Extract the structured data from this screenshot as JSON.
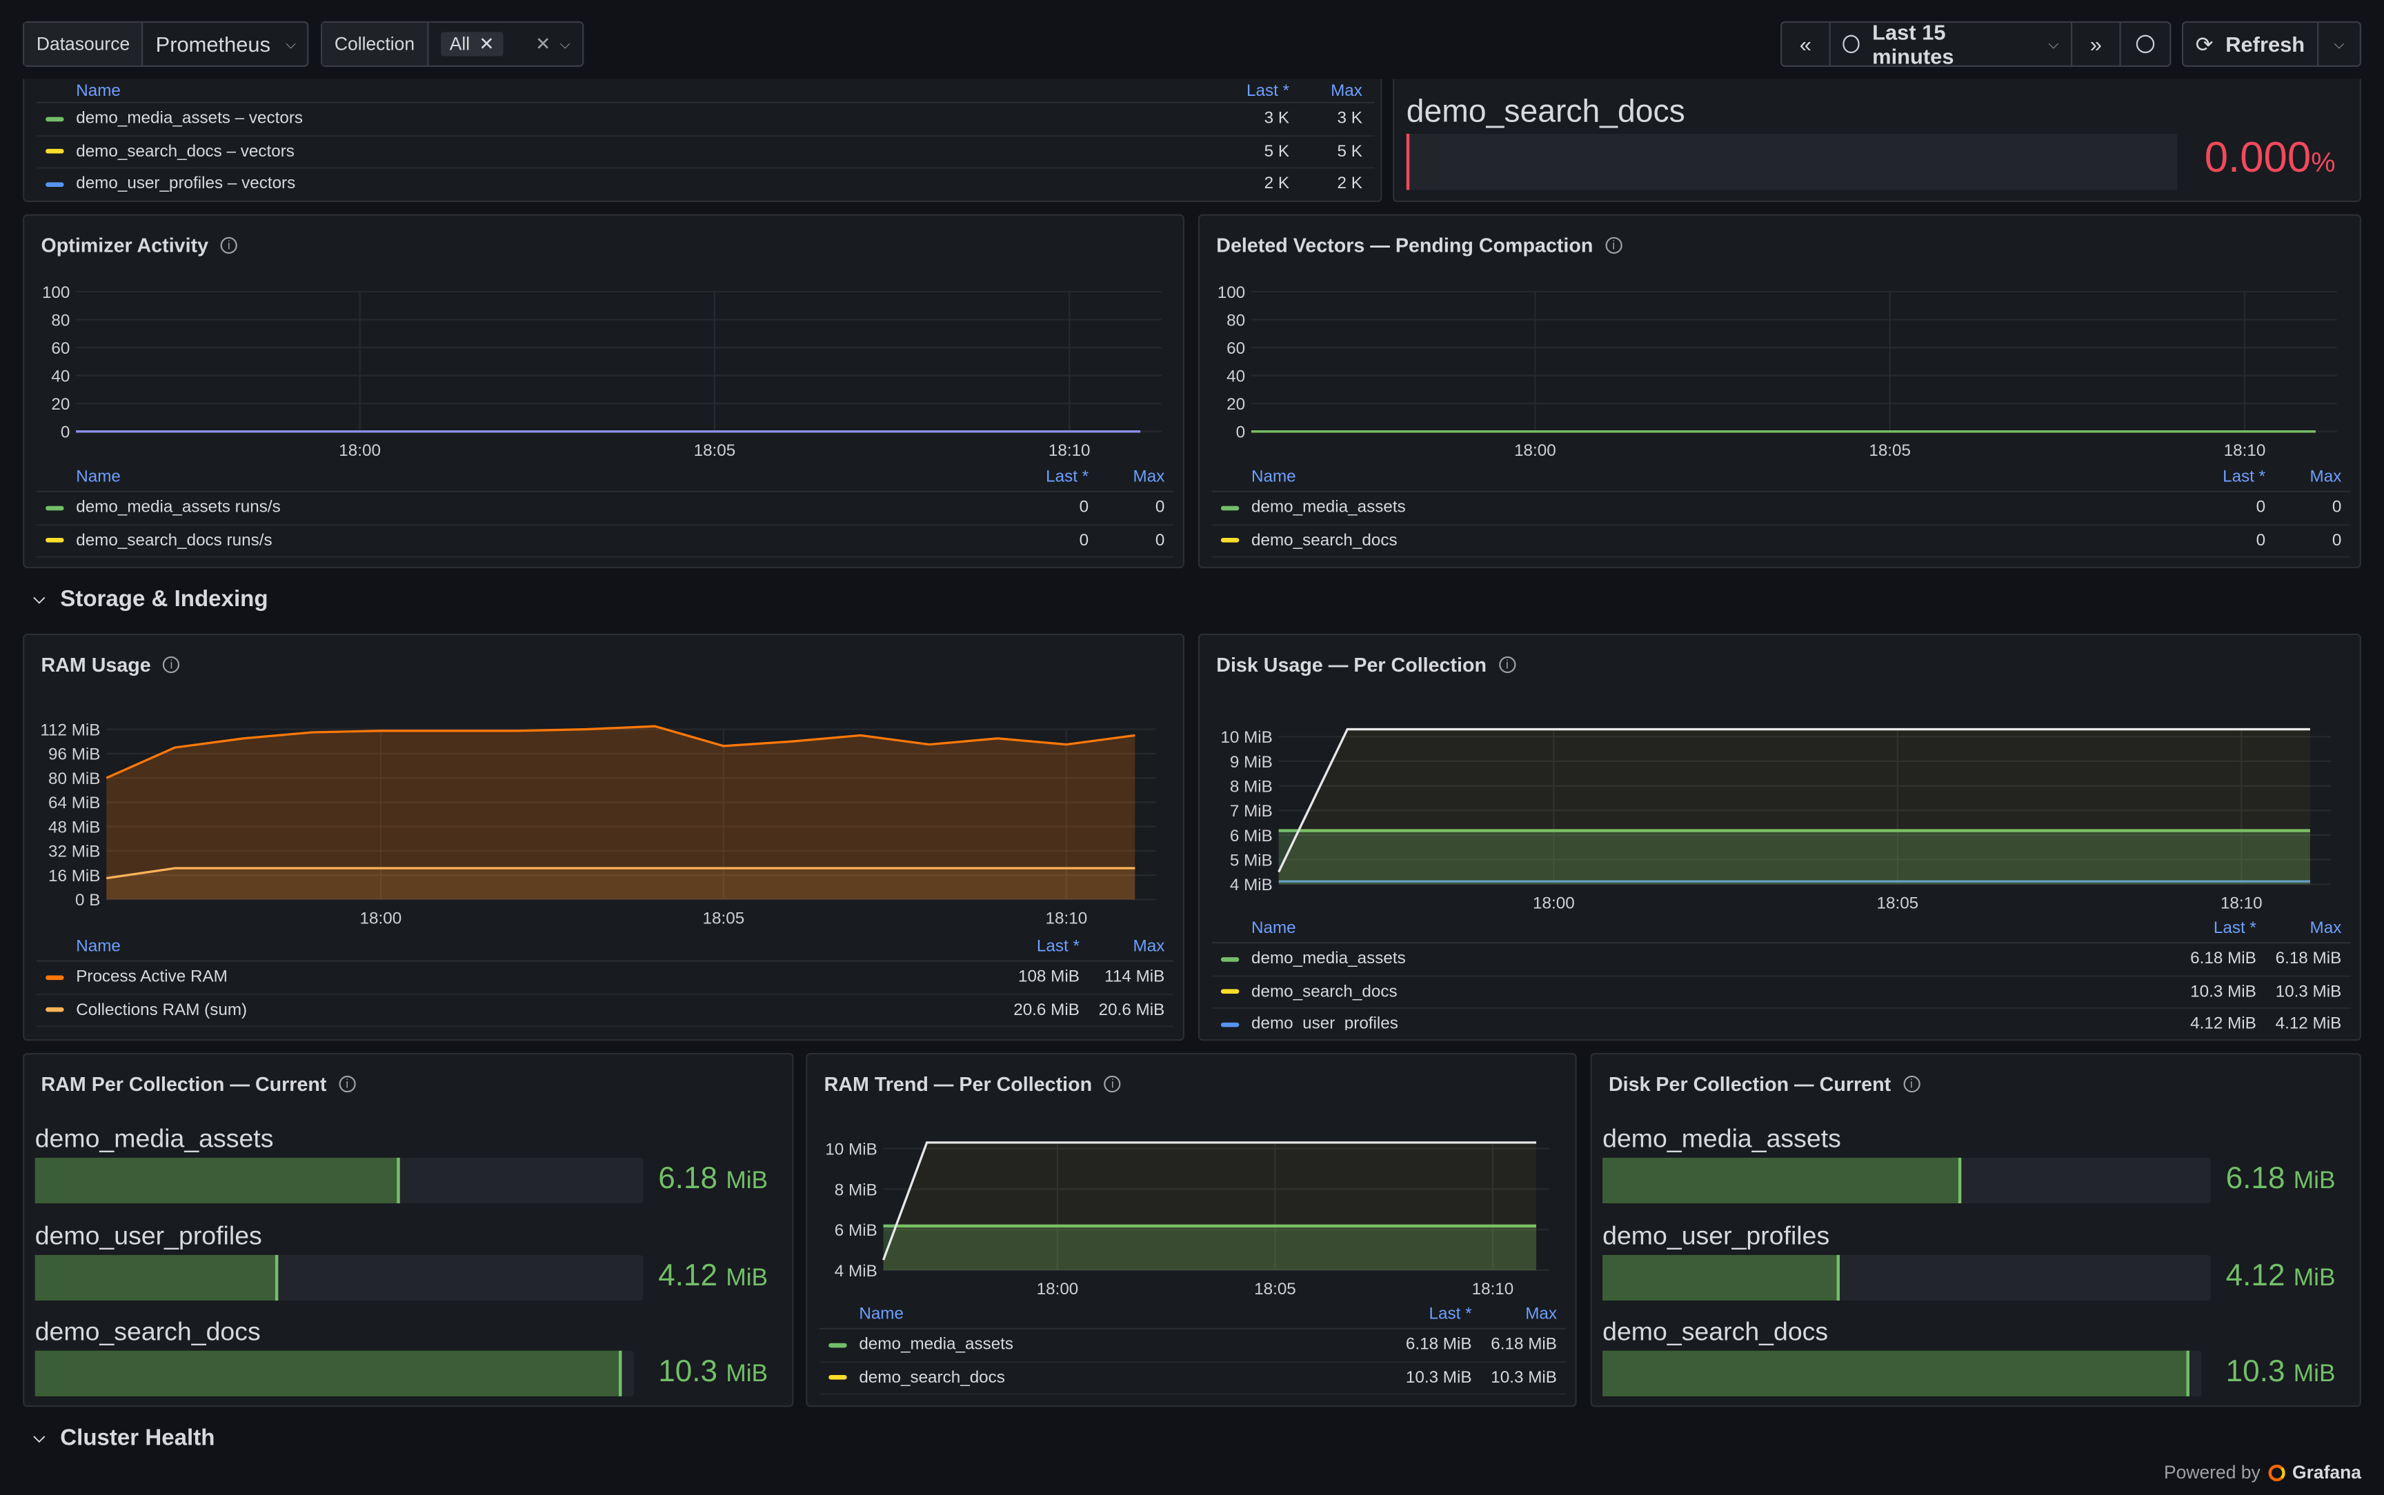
{
  "toolbar": {
    "datasource_label": "Datasource",
    "datasource_value": "Prometheus",
    "collection_label": "Collection",
    "collection_chip": "All",
    "time_range": "Last 15 minutes",
    "refresh_label": "Refresh"
  },
  "top_legend": {
    "headers": [
      "Name",
      "Last *",
      "Max"
    ],
    "rows": [
      {
        "name": "demo_media_assets – vectors",
        "last": "3 K",
        "max": "3 K",
        "color": "#73bf69"
      },
      {
        "name": "demo_search_docs – vectors",
        "last": "5 K",
        "max": "5 K",
        "color": "#fade2a"
      },
      {
        "name": "demo_user_profiles – vectors",
        "last": "2 K",
        "max": "2 K",
        "color": "#5794f2"
      }
    ]
  },
  "top_stat": {
    "name": "demo_search_docs",
    "value": "0.000",
    "unit": "%"
  },
  "optimizer": {
    "title": "Optimizer Activity",
    "yticks": [
      "100",
      "80",
      "60",
      "40",
      "20",
      "0"
    ],
    "xticks": [
      "18:00",
      "18:05",
      "18:10"
    ],
    "legend_headers": [
      "Name",
      "Last *",
      "Max"
    ],
    "legend": [
      {
        "name": "demo_media_assets runs/s",
        "last": "0",
        "max": "0",
        "color": "#73bf69"
      },
      {
        "name": "demo_search_docs runs/s",
        "last": "0",
        "max": "0",
        "color": "#fade2a"
      }
    ]
  },
  "deleted": {
    "title": "Deleted Vectors — Pending Compaction",
    "yticks": [
      "100",
      "80",
      "60",
      "40",
      "20",
      "0"
    ],
    "xticks": [
      "18:00",
      "18:05",
      "18:10"
    ],
    "legend_headers": [
      "Name",
      "Last *",
      "Max"
    ],
    "legend": [
      {
        "name": "demo_media_assets",
        "last": "0",
        "max": "0",
        "color": "#73bf69"
      },
      {
        "name": "demo_search_docs",
        "last": "0",
        "max": "0",
        "color": "#fade2a"
      }
    ]
  },
  "rows": {
    "storage": "Storage & Indexing",
    "cluster": "Cluster Health"
  },
  "ram_usage": {
    "title": "RAM Usage",
    "yticks": [
      "112 MiB",
      "96 MiB",
      "80 MiB",
      "64 MiB",
      "48 MiB",
      "32 MiB",
      "16 MiB",
      "0 B"
    ],
    "xticks": [
      "18:00",
      "18:05",
      "18:10"
    ],
    "legend_headers": [
      "Name",
      "Last *",
      "Max"
    ],
    "legend": [
      {
        "name": "Process Active RAM",
        "last": "108 MiB",
        "max": "114 MiB",
        "color": "#ff780a"
      },
      {
        "name": "Collections RAM (sum)",
        "last": "20.6 MiB",
        "max": "20.6 MiB",
        "color": "#ffb357"
      }
    ]
  },
  "disk_usage": {
    "title": "Disk Usage — Per Collection",
    "yticks": [
      "10 MiB",
      "9 MiB",
      "8 MiB",
      "7 MiB",
      "6 MiB",
      "5 MiB",
      "4 MiB"
    ],
    "xticks": [
      "18:00",
      "18:05",
      "18:10"
    ],
    "legend_headers": [
      "Name",
      "Last *",
      "Max"
    ],
    "legend": [
      {
        "name": "demo_media_assets",
        "last": "6.18 MiB",
        "max": "6.18 MiB",
        "color": "#73bf69"
      },
      {
        "name": "demo_search_docs",
        "last": "10.3 MiB",
        "max": "10.3 MiB",
        "color": "#fade2a"
      },
      {
        "name": "demo_user_profiles",
        "last": "4.12 MiB",
        "max": "4.12 MiB",
        "color": "#5794f2"
      }
    ]
  },
  "ram_per_collection": {
    "title": "RAM Per Collection — Current",
    "items": [
      {
        "name": "demo_media_assets",
        "value": "6.18",
        "unit": "MiB",
        "fraction": 0.6
      },
      {
        "name": "demo_user_profiles",
        "value": "4.12",
        "unit": "MiB",
        "fraction": 0.4
      },
      {
        "name": "demo_search_docs",
        "value": "10.3",
        "unit": "MiB",
        "fraction": 0.98
      }
    ]
  },
  "ram_trend": {
    "title": "RAM Trend — Per Collection",
    "yticks": [
      "10 MiB",
      "8 MiB",
      "6 MiB",
      "4 MiB"
    ],
    "xticks": [
      "18:00",
      "18:05",
      "18:10"
    ],
    "legend_headers": [
      "Name",
      "Last *",
      "Max"
    ],
    "legend": [
      {
        "name": "demo_media_assets",
        "last": "6.18 MiB",
        "max": "6.18 MiB",
        "color": "#73bf69"
      },
      {
        "name": "demo_search_docs",
        "last": "10.3 MiB",
        "max": "10.3 MiB",
        "color": "#fade2a"
      }
    ]
  },
  "disk_per_collection": {
    "title": "Disk Per Collection — Current",
    "items": [
      {
        "name": "demo_media_assets",
        "value": "6.18",
        "unit": "MiB",
        "fraction": 0.59
      },
      {
        "name": "demo_user_profiles",
        "value": "4.12",
        "unit": "MiB",
        "fraction": 0.39
      },
      {
        "name": "demo_search_docs",
        "value": "10.3",
        "unit": "MiB",
        "fraction": 0.98
      }
    ]
  },
  "footer": {
    "powered_by": "Powered by",
    "brand": "Grafana"
  },
  "chart_data": [
    {
      "type": "line",
      "title": "Optimizer Activity",
      "x": [
        "17:56",
        "18:00",
        "18:05",
        "18:10",
        "18:11"
      ],
      "ylim": [
        0,
        100
      ],
      "series": [
        {
          "name": "demo_media_assets runs/s",
          "values": [
            0,
            0,
            0,
            0,
            0
          ]
        },
        {
          "name": "demo_search_docs runs/s",
          "values": [
            0,
            0,
            0,
            0,
            0
          ]
        }
      ]
    },
    {
      "type": "line",
      "title": "Deleted Vectors — Pending Compaction",
      "x": [
        "17:56",
        "18:00",
        "18:05",
        "18:10",
        "18:11"
      ],
      "ylim": [
        0,
        100
      ],
      "series": [
        {
          "name": "demo_media_assets",
          "values": [
            0,
            0,
            0,
            0,
            0
          ]
        },
        {
          "name": "demo_search_docs",
          "values": [
            0,
            0,
            0,
            0,
            0
          ]
        }
      ]
    },
    {
      "type": "area",
      "title": "RAM Usage",
      "x": [
        "17:56",
        "17:57",
        "17:58",
        "17:59",
        "18:00",
        "18:01",
        "18:02",
        "18:03",
        "18:04",
        "18:05",
        "18:06",
        "18:07",
        "18:08",
        "18:09",
        "18:10",
        "18:11"
      ],
      "ylim": [
        0,
        112
      ],
      "series": [
        {
          "name": "Process Active RAM",
          "values": [
            80,
            100,
            106,
            110,
            111,
            111,
            111,
            112,
            114,
            101,
            104,
            108,
            102,
            106,
            102,
            108
          ]
        },
        {
          "name": "Collections RAM (sum)",
          "values": [
            14,
            20.6,
            20.6,
            20.6,
            20.6,
            20.6,
            20.6,
            20.6,
            20.6,
            20.6,
            20.6,
            20.6,
            20.6,
            20.6,
            20.6,
            20.6
          ]
        }
      ]
    },
    {
      "type": "line",
      "title": "Disk Usage — Per Collection",
      "x": [
        "17:56",
        "17:57",
        "18:00",
        "18:05",
        "18:10",
        "18:11"
      ],
      "ylim": [
        4,
        10.3
      ],
      "series": [
        {
          "name": "demo_media_assets",
          "values": [
            6.18,
            6.18,
            6.18,
            6.18,
            6.18,
            6.18
          ]
        },
        {
          "name": "demo_search_docs",
          "values": [
            4.5,
            10.3,
            10.3,
            10.3,
            10.3,
            10.3
          ]
        },
        {
          "name": "demo_user_profiles",
          "values": [
            4.12,
            4.12,
            4.12,
            4.12,
            4.12,
            4.12
          ]
        }
      ]
    },
    {
      "type": "line",
      "title": "RAM Trend — Per Collection",
      "x": [
        "17:56",
        "17:57",
        "18:00",
        "18:05",
        "18:10",
        "18:11"
      ],
      "ylim": [
        4,
        10.3
      ],
      "series": [
        {
          "name": "demo_media_assets",
          "values": [
            6.18,
            6.18,
            6.18,
            6.18,
            6.18,
            6.18
          ]
        },
        {
          "name": "demo_search_docs",
          "values": [
            4.5,
            10.3,
            10.3,
            10.3,
            10.3,
            10.3
          ]
        }
      ]
    }
  ]
}
